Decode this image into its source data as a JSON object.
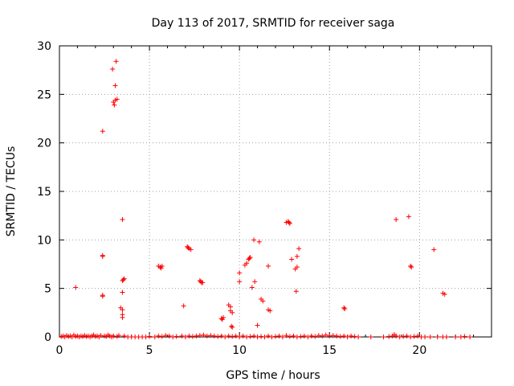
{
  "chart_data": {
    "type": "scatter",
    "title": "Day 113 of 2017, SRMTID for receiver saga",
    "xlabel": "GPS time / hours",
    "ylabel": "SRMTID / TECUs",
    "xlim": [
      0,
      24
    ],
    "ylim": [
      0,
      30
    ],
    "xticks": [
      "0",
      "5",
      "10",
      "15",
      "20"
    ],
    "yticks": [
      "0",
      "5",
      "10",
      "15",
      "20",
      "25",
      "30"
    ],
    "grid": true,
    "marker": "plus",
    "color": "#ff0000",
    "series": [
      {
        "name": "SRMTID",
        "points": [
          [
            0.9,
            5.1
          ],
          [
            2.4,
            21.2
          ],
          [
            2.4,
            8.4
          ],
          [
            2.4,
            8.3
          ],
          [
            2.4,
            4.3
          ],
          [
            2.4,
            4.2
          ],
          [
            2.95,
            27.6
          ],
          [
            3.15,
            28.4
          ],
          [
            3.1,
            25.9
          ],
          [
            3.0,
            24.2
          ],
          [
            3.1,
            24.4
          ],
          [
            3.2,
            24.5
          ],
          [
            3.05,
            23.9
          ],
          [
            3.5,
            12.1
          ],
          [
            3.5,
            4.6
          ],
          [
            3.4,
            3.0
          ],
          [
            3.5,
            2.8
          ],
          [
            3.5,
            2.3
          ],
          [
            3.5,
            2.0
          ],
          [
            3.5,
            5.8
          ],
          [
            3.6,
            6.0
          ],
          [
            3.55,
            5.9
          ],
          [
            5.5,
            7.3
          ],
          [
            5.6,
            7.2
          ],
          [
            5.7,
            7.3
          ],
          [
            5.65,
            7.1
          ],
          [
            6.9,
            3.2
          ],
          [
            7.1,
            9.3
          ],
          [
            7.2,
            9.1
          ],
          [
            7.3,
            9.0
          ],
          [
            7.15,
            9.2
          ],
          [
            7.8,
            5.8
          ],
          [
            7.9,
            5.6
          ],
          [
            7.85,
            5.7
          ],
          [
            7.95,
            5.6
          ],
          [
            9.0,
            1.9
          ],
          [
            9.1,
            2.0
          ],
          [
            9.05,
            1.8
          ],
          [
            9.4,
            3.3
          ],
          [
            9.5,
            3.1
          ],
          [
            9.5,
            2.7
          ],
          [
            9.6,
            2.5
          ],
          [
            9.55,
            1.1
          ],
          [
            9.6,
            1.0
          ],
          [
            10.0,
            6.6
          ],
          [
            10.0,
            5.7
          ],
          [
            10.3,
            7.4
          ],
          [
            10.4,
            7.6
          ],
          [
            10.5,
            8.0
          ],
          [
            10.6,
            8.2
          ],
          [
            10.55,
            8.1
          ],
          [
            10.7,
            5.1
          ],
          [
            10.85,
            5.7
          ],
          [
            10.8,
            10.0
          ],
          [
            11.1,
            9.8
          ],
          [
            11.0,
            1.2
          ],
          [
            11.2,
            3.9
          ],
          [
            11.3,
            3.7
          ],
          [
            11.6,
            7.3
          ],
          [
            11.6,
            2.8
          ],
          [
            11.7,
            2.7
          ],
          [
            12.6,
            11.8
          ],
          [
            12.7,
            11.9
          ],
          [
            12.8,
            11.7
          ],
          [
            12.75,
            11.8
          ],
          [
            12.9,
            8.0
          ],
          [
            13.1,
            7.0
          ],
          [
            13.2,
            7.2
          ],
          [
            13.2,
            8.3
          ],
          [
            13.3,
            9.1
          ],
          [
            13.15,
            4.7
          ],
          [
            15.8,
            3.0
          ],
          [
            15.85,
            2.9
          ],
          [
            18.7,
            12.1
          ],
          [
            19.4,
            12.4
          ],
          [
            19.5,
            7.3
          ],
          [
            19.55,
            7.2
          ],
          [
            20.8,
            9.0
          ],
          [
            21.3,
            4.5
          ],
          [
            21.4,
            4.4
          ],
          [
            0.1,
            0.05
          ],
          [
            0.2,
            0.1
          ],
          [
            0.3,
            0.0
          ],
          [
            0.4,
            0.15
          ],
          [
            0.5,
            0.05
          ],
          [
            0.6,
            0.1
          ],
          [
            0.7,
            0.0
          ],
          [
            0.8,
            0.2
          ],
          [
            0.9,
            0.05
          ],
          [
            1.0,
            0.1
          ],
          [
            1.1,
            0.0
          ],
          [
            1.2,
            0.1
          ],
          [
            1.3,
            0.05
          ],
          [
            1.4,
            0.15
          ],
          [
            1.5,
            0.05
          ],
          [
            1.6,
            0.1
          ],
          [
            1.7,
            0.0
          ],
          [
            1.8,
            0.1
          ],
          [
            1.9,
            0.2
          ],
          [
            2.0,
            0.05
          ],
          [
            2.1,
            0.1
          ],
          [
            2.2,
            0.0
          ],
          [
            2.3,
            0.15
          ],
          [
            2.5,
            0.1
          ],
          [
            2.6,
            0.05
          ],
          [
            2.7,
            0.2
          ],
          [
            2.8,
            0.1
          ],
          [
            2.9,
            0.0
          ],
          [
            3.0,
            0.1
          ],
          [
            3.2,
            0.05
          ],
          [
            3.3,
            0.15
          ],
          [
            3.6,
            0.1
          ],
          [
            3.8,
            0.0
          ],
          [
            4.0,
            0.0
          ],
          [
            4.2,
            0.0
          ],
          [
            4.4,
            0.0
          ],
          [
            4.6,
            0.0
          ],
          [
            4.8,
            0.0
          ],
          [
            5.0,
            0.05
          ],
          [
            5.3,
            0.0
          ],
          [
            5.5,
            0.1
          ],
          [
            5.7,
            0.05
          ],
          [
            5.9,
            0.15
          ],
          [
            6.1,
            0.1
          ],
          [
            6.3,
            0.0
          ],
          [
            6.5,
            0.05
          ],
          [
            6.8,
            0.1
          ],
          [
            7.0,
            0.0
          ],
          [
            7.2,
            0.1
          ],
          [
            7.4,
            0.05
          ],
          [
            7.6,
            0.1
          ],
          [
            7.8,
            0.15
          ],
          [
            8.0,
            0.2
          ],
          [
            8.2,
            0.1
          ],
          [
            8.4,
            0.15
          ],
          [
            8.6,
            0.1
          ],
          [
            8.8,
            0.05
          ],
          [
            9.0,
            0.1
          ],
          [
            9.2,
            0.0
          ],
          [
            9.4,
            0.1
          ],
          [
            9.6,
            0.05
          ],
          [
            9.8,
            0.1
          ],
          [
            10.0,
            0.0
          ],
          [
            10.2,
            0.1
          ],
          [
            10.4,
            0.0
          ],
          [
            10.6,
            0.05
          ],
          [
            10.8,
            0.1
          ],
          [
            11.0,
            0.0
          ],
          [
            11.2,
            0.05
          ],
          [
            11.4,
            0.0
          ],
          [
            11.6,
            0.1
          ],
          [
            11.8,
            0.0
          ],
          [
            12.0,
            0.05
          ],
          [
            12.2,
            0.1
          ],
          [
            12.4,
            0.0
          ],
          [
            12.6,
            0.15
          ],
          [
            12.8,
            0.05
          ],
          [
            13.0,
            0.1
          ],
          [
            13.2,
            0.0
          ],
          [
            13.4,
            0.05
          ],
          [
            13.6,
            0.1
          ],
          [
            13.8,
            0.0
          ],
          [
            14.0,
            0.1
          ],
          [
            14.2,
            0.05
          ],
          [
            14.4,
            0.15
          ],
          [
            14.6,
            0.1
          ],
          [
            14.8,
            0.2
          ],
          [
            15.0,
            0.1
          ],
          [
            15.2,
            0.15
          ],
          [
            15.4,
            0.1
          ],
          [
            15.6,
            0.05
          ],
          [
            15.8,
            0.1
          ],
          [
            16.0,
            0.0
          ],
          [
            16.2,
            0.1
          ],
          [
            16.4,
            0.05
          ],
          [
            16.6,
            0.0
          ],
          [
            17.3,
            0.0
          ],
          [
            18.0,
            0.0
          ],
          [
            18.3,
            0.05
          ],
          [
            18.5,
            0.1
          ],
          [
            18.6,
            0.25
          ],
          [
            18.7,
            0.1
          ],
          [
            18.9,
            0.0
          ],
          [
            19.1,
            0.05
          ],
          [
            19.3,
            0.1
          ],
          [
            19.5,
            0.0
          ],
          [
            19.7,
            0.05
          ],
          [
            19.9,
            0.1
          ],
          [
            20.1,
            0.0
          ],
          [
            20.3,
            0.0
          ],
          [
            20.6,
            0.0
          ],
          [
            21.0,
            0.0
          ],
          [
            21.3,
            0.0
          ],
          [
            21.5,
            0.0
          ],
          [
            22.0,
            0.0
          ],
          [
            22.3,
            0.0
          ],
          [
            22.5,
            0.05
          ],
          [
            22.8,
            0.0
          ]
        ]
      }
    ]
  }
}
